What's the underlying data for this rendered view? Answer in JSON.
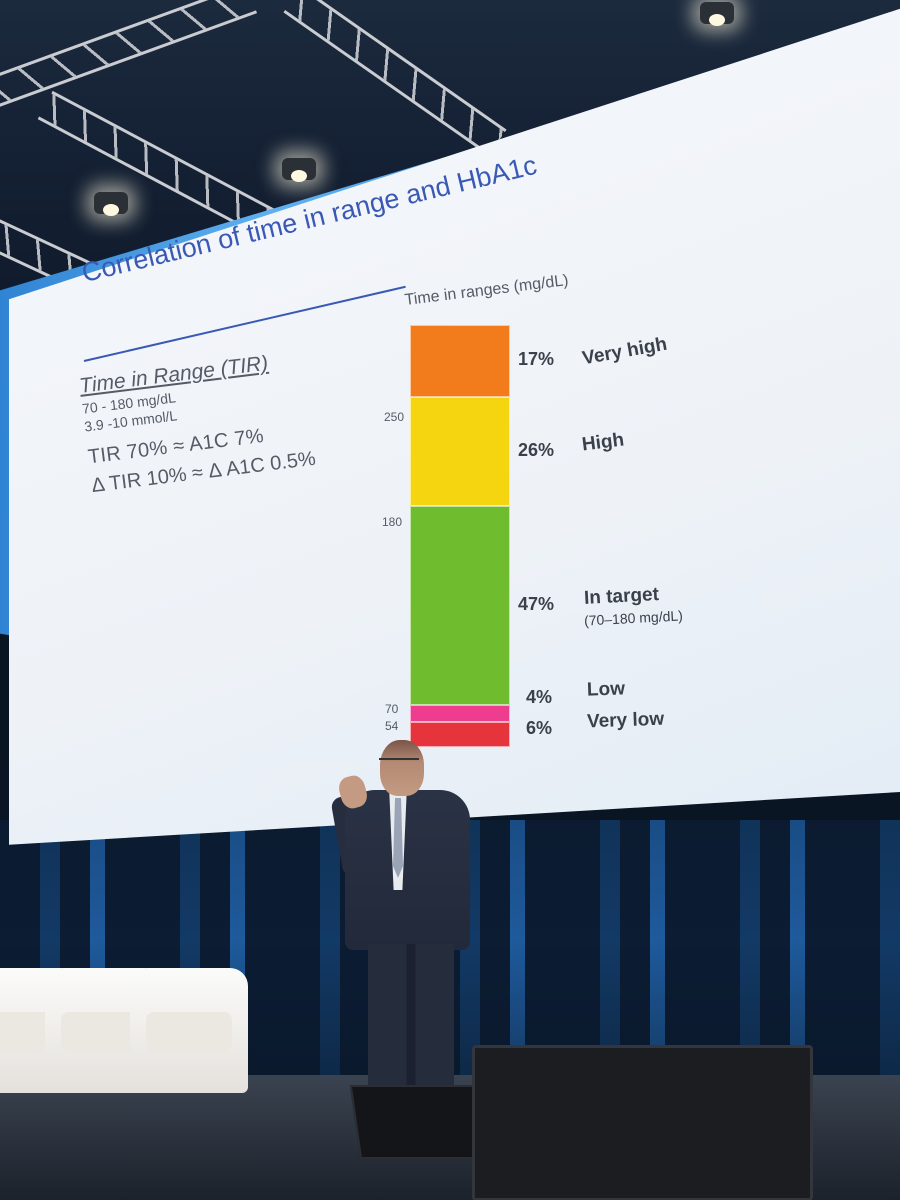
{
  "slide": {
    "title": "Correlation of time in range and HbA1c",
    "tir_heading": "Time in Range (TIR)",
    "tir_mgdl": "70 - 180 mg/dL",
    "tir_mmol": "3.9 -10 mmol/L",
    "equation_1": "TIR 70%  ≈  A1C 7%",
    "equation_2": "Δ TIR 10%  ≈  Δ A1C 0.5%"
  },
  "chart_data": {
    "type": "bar",
    "title": "Time in ranges (mg/dL)",
    "ticks": [
      "250",
      "180",
      "70",
      "54"
    ],
    "segments": [
      {
        "label": "Very high",
        "percent": "17%",
        "value": 17,
        "color": "#f27b1c"
      },
      {
        "label": "High",
        "percent": "26%",
        "value": 26,
        "color": "#f5d50f"
      },
      {
        "label": "In target",
        "sublabel": "(70–180 mg/dL)",
        "percent": "47%",
        "value": 47,
        "color": "#6fbd2e"
      },
      {
        "label": "Low",
        "percent": "4%",
        "value": 4,
        "color": "#ee3c8f"
      },
      {
        "label": "Very low",
        "percent": "6%",
        "value": 6,
        "color": "#e6343c"
      }
    ]
  }
}
